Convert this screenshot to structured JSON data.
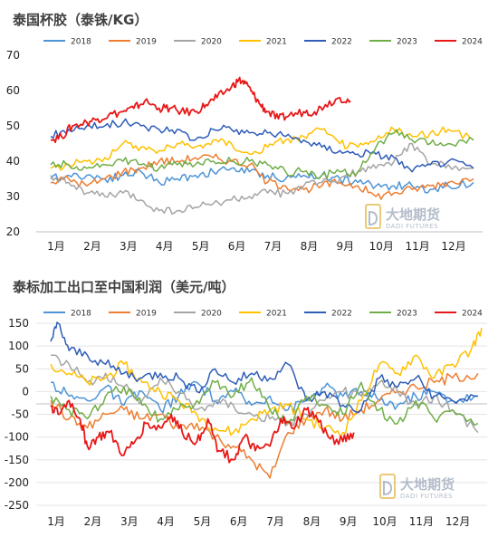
{
  "chart_data": [
    {
      "type": "line",
      "title": "泰国杯胶（泰铢/KG）",
      "xlabel": "",
      "ylabel": "",
      "categories": [
        "1月",
        "2月",
        "3月",
        "4月",
        "5月",
        "6月",
        "7月",
        "8月",
        "9月",
        "10月",
        "11月",
        "12月"
      ],
      "ylim": [
        20,
        70
      ],
      "yticks": [
        20,
        30,
        40,
        50,
        60,
        70
      ],
      "grid": false,
      "legend": "top",
      "series": [
        {
          "name": "2018",
          "color": "#4e94d6",
          "x": [
            1,
            1.5,
            2,
            2.5,
            3,
            3.5,
            4,
            4.5,
            5,
            5.5,
            6,
            6.5,
            7,
            7.5,
            8,
            8.5,
            9,
            9.5,
            10,
            10.5,
            11,
            11.5,
            12,
            12.7
          ],
          "values": [
            35,
            36,
            36,
            35,
            36,
            37,
            34,
            35,
            36,
            37,
            38,
            37,
            36,
            35,
            36,
            36,
            35,
            34,
            33,
            33,
            33,
            32,
            33,
            34
          ]
        },
        {
          "name": "2019",
          "color": "#ed7d31",
          "x": [
            1,
            1.5,
            2,
            2.5,
            3,
            3.5,
            4,
            4.5,
            5,
            5.5,
            6,
            6.5,
            7,
            7.5,
            8,
            8.5,
            9,
            9.5,
            10,
            10.5,
            11,
            11.5,
            12,
            12.7
          ],
          "values": [
            34,
            35,
            33,
            35,
            37,
            38,
            40,
            40,
            41,
            41,
            40,
            39,
            34,
            33,
            32,
            33,
            34,
            33,
            30,
            31,
            32,
            33,
            34,
            35
          ]
        },
        {
          "name": "2020",
          "color": "#a5a5a5",
          "x": [
            1,
            1.5,
            2,
            2.5,
            3,
            3.5,
            4,
            4.5,
            5,
            5.5,
            6,
            6.5,
            7,
            7.5,
            8,
            8.5,
            9,
            9.5,
            10,
            10.5,
            11,
            11.5,
            12,
            12.7
          ],
          "values": [
            36,
            34,
            31,
            30,
            31,
            29,
            26,
            26,
            27,
            28,
            29,
            30,
            31,
            31,
            33,
            34,
            35,
            37,
            38,
            40,
            45,
            39,
            39,
            38
          ]
        },
        {
          "name": "2021",
          "color": "#ffc000",
          "x": [
            1,
            1.5,
            2,
            2.5,
            3,
            3.5,
            4,
            4.5,
            5,
            5.5,
            6,
            6.5,
            7,
            7.5,
            8,
            8.5,
            9,
            9.5,
            10,
            10.5,
            11,
            11.5,
            12,
            12.7
          ],
          "values": [
            38,
            39,
            40,
            41,
            45,
            44,
            43,
            45,
            44,
            46,
            45,
            42,
            44,
            46,
            47,
            49,
            45,
            44,
            46,
            49,
            47,
            48,
            49,
            46
          ]
        },
        {
          "name": "2022",
          "color": "#2f5db8",
          "x": [
            1,
            1.5,
            2,
            2.5,
            3,
            3.5,
            4,
            4.5,
            5,
            5.5,
            6,
            6.5,
            7,
            7.5,
            8,
            8.5,
            9,
            9.5,
            10,
            10.5,
            11,
            11.5,
            12,
            12.7
          ],
          "values": [
            47,
            49,
            50,
            50,
            51,
            50,
            49,
            49,
            46,
            49,
            49,
            48,
            48,
            47,
            46,
            44,
            43,
            42,
            42,
            41,
            37,
            39,
            40,
            38
          ]
        },
        {
          "name": "2023",
          "color": "#70ad47",
          "x": [
            1,
            1.5,
            2,
            2.5,
            3,
            3.5,
            4,
            4.5,
            5,
            5.5,
            6,
            6.5,
            7,
            7.5,
            8,
            8.5,
            9,
            9.5,
            10,
            10.5,
            11,
            11.5,
            12,
            12.7
          ],
          "values": [
            39,
            39,
            38,
            39,
            40,
            39,
            38,
            39,
            39,
            40,
            40,
            40,
            39,
            37,
            37,
            36,
            37,
            37,
            44,
            48,
            46,
            45,
            45,
            46
          ]
        },
        {
          "name": "2024",
          "color": "#e81818",
          "x": [
            1,
            1.3,
            1.6,
            2,
            2.3,
            2.6,
            3,
            3.3,
            3.6,
            4,
            4.3,
            4.6,
            5,
            5.3,
            5.6,
            6,
            6.2,
            6.4,
            6.6,
            6.8,
            7,
            7.3,
            7.6,
            8,
            8.3,
            8.6,
            9,
            9.3
          ],
          "values": [
            46,
            47,
            50,
            51,
            52,
            53,
            54,
            55,
            57,
            55,
            55,
            54,
            54,
            56,
            58,
            61,
            63,
            62,
            59,
            56,
            54,
            52,
            53,
            54,
            54,
            56,
            58,
            57
          ]
        }
      ]
    },
    {
      "type": "line",
      "title": "泰标加工出口至中国利润（美元/吨）",
      "xlabel": "",
      "ylabel": "",
      "categories": [
        "1月",
        "2月",
        "3月",
        "4月",
        "5月",
        "6月",
        "7月",
        "8月",
        "9月",
        "10月",
        "11月",
        "12月"
      ],
      "ylim": [
        -250,
        150
      ],
      "yticks": [
        -250,
        -200,
        -150,
        -100,
        -50,
        0,
        50,
        100,
        150
      ],
      "grid": true,
      "legend": "top",
      "series": [
        {
          "name": "2018",
          "color": "#4e94d6",
          "x": [
            1,
            1.5,
            2,
            2.5,
            3,
            3.5,
            4,
            4.5,
            5,
            5.5,
            6,
            6.5,
            7,
            7.5,
            8,
            8.5,
            9,
            9.5,
            10,
            10.5,
            11,
            11.5,
            12,
            12.7
          ],
          "values": [
            20,
            -10,
            -20,
            10,
            -30,
            0,
            -40,
            -10,
            20,
            -20,
            0,
            -30,
            -10,
            -40,
            -20,
            10,
            -10,
            0,
            -20,
            -30,
            -10,
            0,
            -20,
            -10
          ]
        },
        {
          "name": "2019",
          "color": "#ed7d31",
          "x": [
            1,
            1.5,
            2,
            2.5,
            3,
            3.5,
            4,
            4.5,
            5,
            5.5,
            6,
            6.5,
            7,
            7.5,
            8,
            8.5,
            9,
            9.5,
            10,
            10.5,
            11,
            11.5,
            12,
            12.7
          ],
          "values": [
            -20,
            -60,
            -80,
            -50,
            -40,
            -60,
            -50,
            -80,
            -70,
            -100,
            -120,
            -150,
            -190,
            -90,
            -60,
            -40,
            -60,
            -40,
            -20,
            0,
            10,
            20,
            30,
            40
          ]
        },
        {
          "name": "2020",
          "color": "#a5a5a5",
          "x": [
            1,
            1.5,
            2,
            2.5,
            3,
            3.5,
            4,
            4.5,
            5,
            5.5,
            6,
            6.5,
            7,
            7.5,
            8,
            8.5,
            9,
            9.5,
            10,
            10.5,
            11,
            11.5,
            12,
            12.7
          ],
          "values": [
            80,
            60,
            20,
            40,
            10,
            -20,
            30,
            0,
            -40,
            -20,
            -30,
            -50,
            -60,
            -70,
            -50,
            -20,
            0,
            -10,
            20,
            0,
            -30,
            -10,
            -40,
            -90
          ]
        },
        {
          "name": "2021",
          "color": "#ffc000",
          "x": [
            1,
            1.5,
            2,
            2.5,
            3,
            3.5,
            4,
            4.5,
            5,
            5.5,
            6,
            6.5,
            7,
            7.5,
            8,
            8.5,
            9,
            9.5,
            10,
            10.5,
            11,
            11.5,
            12,
            12.5,
            12.8
          ],
          "values": [
            60,
            40,
            20,
            30,
            60,
            20,
            0,
            -20,
            -50,
            -80,
            -90,
            -60,
            -40,
            -30,
            -60,
            -80,
            -90,
            -20,
            60,
            40,
            80,
            30,
            60,
            90,
            140
          ]
        },
        {
          "name": "2022",
          "color": "#2f5db8",
          "x": [
            1,
            1.2,
            1.5,
            2,
            2.5,
            3,
            3.5,
            4,
            4.5,
            5,
            5.5,
            6,
            6.5,
            7,
            7.5,
            8,
            8.5,
            9,
            9.5,
            10,
            10.5,
            11,
            11.5,
            12,
            12.7
          ],
          "values": [
            110,
            150,
            90,
            80,
            60,
            40,
            30,
            40,
            30,
            0,
            50,
            20,
            40,
            30,
            60,
            -20,
            0,
            -30,
            -40,
            30,
            10,
            30,
            -10,
            -20,
            -10
          ]
        },
        {
          "name": "2023",
          "color": "#70ad47",
          "x": [
            1,
            1.5,
            2,
            2.5,
            3,
            3.5,
            4,
            4.5,
            5,
            5.5,
            6,
            6.5,
            7,
            7.5,
            8,
            8.5,
            9,
            9.5,
            10,
            10.5,
            11,
            11.5,
            12,
            12.7
          ],
          "values": [
            -10,
            -40,
            -60,
            -10,
            10,
            -30,
            -60,
            -40,
            -20,
            20,
            -10,
            30,
            -40,
            -70,
            -10,
            -30,
            -50,
            20,
            -40,
            -70,
            -20,
            -60,
            -40,
            -70
          ]
        },
        {
          "name": "2024",
          "color": "#e81818",
          "x": [
            1,
            1.2,
            1.5,
            1.8,
            2,
            2.3,
            2.6,
            3,
            3.3,
            3.6,
            4,
            4.3,
            4.6,
            5,
            5.3,
            5.6,
            6,
            6.3,
            6.6,
            7,
            7.3,
            7.6,
            8,
            8.3,
            8.6,
            9,
            9.3
          ],
          "values": [
            -30,
            -50,
            -20,
            -60,
            -120,
            -100,
            -90,
            -140,
            -110,
            -70,
            -80,
            -50,
            -90,
            -110,
            -60,
            -130,
            -150,
            -100,
            -130,
            -120,
            -60,
            -80,
            -40,
            -60,
            -100,
            -110,
            -90
          ]
        }
      ]
    }
  ],
  "watermark": {
    "text_cn": "大地期货",
    "text_en": "DADI FUTURES"
  }
}
